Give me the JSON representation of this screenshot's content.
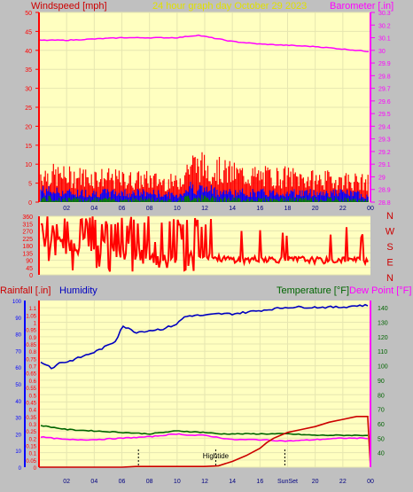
{
  "header": {
    "left_label": "Windspeed [mph]",
    "center_label": "24 hour graph day   October 29 2023",
    "right_label": "Barometer [.in]"
  },
  "colors": {
    "background": "#c0c0c0",
    "plot_bg": "#ffffc0",
    "wind_gust": "#ff0000",
    "wind_avg": "#0000ff",
    "wind_low": "#008000",
    "barometer": "#ff00ff",
    "direction": "#ff0000",
    "humidity": "#0000c0",
    "temperature": "#006400",
    "dewpoint": "#ff00ff",
    "rainfall": "#cc0000",
    "axis_left": "#ff0000",
    "axis_blue": "#0000ff",
    "axis_right": "#ff00ff",
    "label_red": "#cc0000"
  },
  "chart_data": [
    {
      "type": "line",
      "title": "24 hour graph day   October 29 2023",
      "ylabel": "Windspeed [mph]",
      "y2label": "Barometer [.in]",
      "ylim": [
        0,
        50
      ],
      "y2lim": [
        28.8,
        30.3
      ],
      "yticks": [
        "0",
        "5",
        "10",
        "15",
        "20",
        "25",
        "30",
        "35",
        "40",
        "45",
        "50"
      ],
      "y2ticks": [
        "28.8",
        "28.9",
        "29",
        "29.1",
        "29.2",
        "29.3",
        "29.4",
        "29.5",
        "29.6",
        "29.7",
        "29.8",
        "29.9",
        "30",
        "30.1",
        "30.2",
        "30.3"
      ],
      "xticks": [
        "02",
        "04",
        "06",
        "08",
        "10",
        "12",
        "14",
        "16",
        "18",
        "20",
        "22",
        "00"
      ],
      "xrange_hours": [
        0,
        24
      ],
      "series": [
        {
          "name": "Barometer [.in]",
          "axis": "right",
          "x": [
            0,
            2,
            4,
            6,
            8,
            10,
            11.5,
            12.5,
            14,
            16,
            18,
            20,
            22,
            24
          ],
          "values": [
            30.08,
            30.08,
            30.09,
            30.1,
            30.1,
            30.1,
            30.12,
            30.1,
            30.07,
            30.05,
            30.04,
            30.03,
            30.01,
            29.99
          ]
        }
      ],
      "wind_gust_envelope": {
        "x": [
          0,
          2,
          4,
          6,
          8,
          10,
          11,
          12,
          14,
          16,
          18,
          20,
          22,
          24
        ],
        "values": [
          9,
          8,
          8,
          7,
          7,
          6,
          12,
          11,
          9,
          8,
          8,
          7,
          7,
          6
        ]
      },
      "wind_avg_envelope": {
        "x": [
          0,
          2,
          4,
          6,
          8,
          10,
          11,
          12,
          14,
          16,
          18,
          20,
          22,
          24
        ],
        "values": [
          4,
          3,
          3,
          3,
          3,
          2,
          5,
          4,
          3,
          3,
          3,
          3,
          3,
          2
        ]
      },
      "wind_low_envelope": {
        "x": [
          0,
          2,
          4,
          6,
          8,
          10,
          11,
          12,
          14,
          16,
          18,
          20,
          22,
          24
        ],
        "values": [
          1.5,
          1,
          1,
          1,
          1,
          0.5,
          2,
          1.5,
          1,
          1,
          1,
          1,
          1,
          0.5
        ]
      }
    },
    {
      "type": "line",
      "title": "",
      "ylabel": "",
      "ylim": [
        0,
        360
      ],
      "yticks": [
        "0",
        "45",
        "90",
        "135",
        "180",
        "225",
        "270",
        "315",
        "360"
      ],
      "compass": [
        "N",
        "W",
        "S",
        "E",
        "N"
      ],
      "xrange_hours": [
        0,
        24
      ],
      "series": [
        {
          "name": "",
          "x": [
            0,
            1,
            2,
            3,
            4,
            5,
            6,
            7,
            8,
            9,
            10,
            11,
            12,
            13,
            14,
            15,
            16,
            17,
            18,
            19,
            20,
            21,
            22,
            23,
            24
          ],
          "values": [
            200,
            250,
            180,
            230,
            160,
            150,
            140,
            120,
            100,
            90,
            95,
            110,
            120,
            100,
            95,
            90,
            100,
            95,
            90,
            95,
            90,
            85,
            95,
            90,
            88
          ]
        }
      ]
    },
    {
      "type": "line",
      "title": "",
      "ylabel": "Rainfall [.in]",
      "y2label": "Temperature [°F]",
      "y2label_extra": "Dew Point [°F]",
      "humidity_label": "Humidity",
      "ylim": [
        0,
        1.15
      ],
      "hum_lim": [
        0,
        100
      ],
      "y2lim": [
        30,
        145
      ],
      "rain_ticks": [
        "0",
        "0.05",
        "0.1",
        "0.15",
        "0.2",
        "0.25",
        "0.3",
        "0.35",
        "0.4",
        "0.45",
        "0.5",
        "0.55",
        "0.6",
        "0.65",
        "0.7",
        "0.75",
        "0.8",
        "0.85",
        "0.9",
        "0.95",
        "1",
        "1.05",
        "1.1"
      ],
      "hum_ticks": [
        "0",
        "10",
        "20",
        "30",
        "40",
        "50",
        "60",
        "70",
        "80",
        "90",
        "100"
      ],
      "temp_ticks": [
        "40",
        "50",
        "60",
        "70",
        "80",
        "90",
        "100",
        "110",
        "120",
        "130",
        "140"
      ],
      "xticks": [
        "02",
        "04",
        "06",
        "08",
        "10",
        "12",
        "14",
        "16",
        "SunSet",
        "20",
        "22",
        "00"
      ],
      "xrange_hours": [
        0,
        24
      ],
      "markers": [
        {
          "label": "",
          "hour": 7.2
        },
        {
          "label": "Hightide",
          "hour": 12.8
        },
        {
          "label": "",
          "hour": 17.8
        }
      ],
      "series": [
        {
          "name": "Humidity",
          "axis": "humidity",
          "x": [
            0,
            0.5,
            1,
            1.5,
            2,
            3,
            4,
            5,
            5.6,
            6,
            7,
            8,
            9,
            10,
            10.5,
            11,
            12,
            13,
            14,
            15,
            16,
            17,
            18,
            19,
            20,
            21,
            22,
            23,
            24
          ],
          "values": [
            63,
            62,
            59,
            63,
            63,
            66,
            69,
            73,
            76,
            85,
            81,
            82,
            83,
            86,
            90,
            91,
            91,
            92,
            92,
            93,
            94,
            95,
            96,
            96,
            96,
            96,
            96,
            97,
            97
          ]
        },
        {
          "name": "Temperature [°F]",
          "axis": "right",
          "x": [
            0,
            2,
            4,
            6,
            8,
            10,
            12,
            13,
            14,
            16,
            18,
            20,
            22,
            24
          ],
          "values": [
            59,
            56,
            55,
            54,
            53,
            55,
            54,
            53,
            53,
            53,
            53,
            52,
            52,
            52
          ]
        },
        {
          "name": "Dew Point [°F]",
          "axis": "right",
          "x": [
            0,
            2,
            4,
            6,
            8,
            10,
            11,
            12,
            14,
            16,
            18,
            20,
            22,
            24
          ],
          "values": [
            51,
            49,
            49,
            50,
            51,
            53,
            52,
            52,
            49,
            49,
            48,
            49,
            50,
            50
          ]
        },
        {
          "name": "Rainfall [.in]",
          "axis": "left",
          "x": [
            0,
            6,
            7,
            8,
            12,
            13,
            14,
            15,
            16,
            16.5,
            17,
            17.5,
            18,
            19,
            20,
            21,
            22,
            23,
            23.8,
            24
          ],
          "values": [
            0,
            0,
            0.005,
            0.005,
            0.005,
            0.01,
            0.04,
            0.08,
            0.13,
            0.17,
            0.2,
            0.22,
            0.24,
            0.26,
            0.28,
            0.31,
            0.33,
            0.35,
            0.35,
            0
          ]
        }
      ]
    }
  ]
}
